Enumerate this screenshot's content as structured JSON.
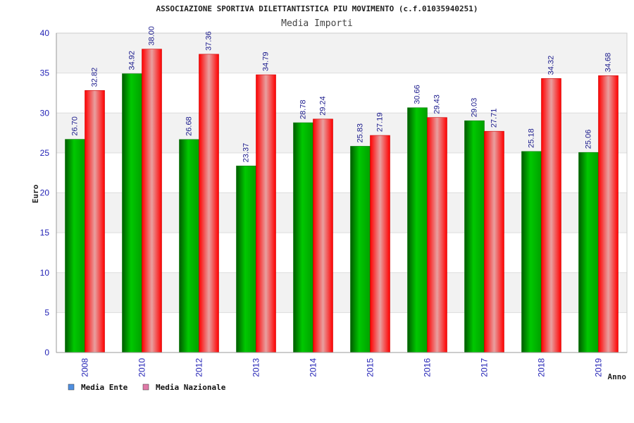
{
  "chart_data": {
    "type": "bar",
    "title": "ASSOCIAZIONE SPORTIVA DILETTANTISTICA PIU MOVIMENTO (c.f.01035940251)",
    "subtitle": "Media Importi",
    "xlabel": "Anno",
    "ylabel": "Euro",
    "ylim": [
      0,
      40
    ],
    "yticks": [
      0,
      5,
      10,
      15,
      20,
      25,
      30,
      35,
      40
    ],
    "categories": [
      "2008",
      "2010",
      "2012",
      "2013",
      "2014",
      "2015",
      "2016",
      "2017",
      "2018",
      "2019"
    ],
    "series": [
      {
        "name": "Media Ente",
        "color": "#00b000",
        "values": [
          26.7,
          34.92,
          26.68,
          23.37,
          28.78,
          25.83,
          30.66,
          29.03,
          25.18,
          25.06
        ],
        "labels": [
          "26.70",
          "34.92",
          "26.68",
          "23.37",
          "28.78",
          "25.83",
          "30.66",
          "29.03",
          "25.18",
          "25.06"
        ]
      },
      {
        "name": "Media Nazionale",
        "color": "#ff1a1a",
        "values": [
          32.82,
          38.0,
          37.36,
          34.79,
          29.24,
          27.19,
          29.43,
          27.71,
          34.32,
          34.68
        ],
        "labels": [
          "32.82",
          "38.00",
          "37.36",
          "34.79",
          "29.24",
          "27.19",
          "29.43",
          "27.71",
          "34.32",
          "34.68"
        ]
      }
    ],
    "legend": [
      {
        "label": "Media Ente",
        "color": "#4f8fe0"
      },
      {
        "label": "Media Nazionale",
        "color": "#e07aa8"
      }
    ],
    "legend_position": "bottom-left",
    "grid": true
  }
}
